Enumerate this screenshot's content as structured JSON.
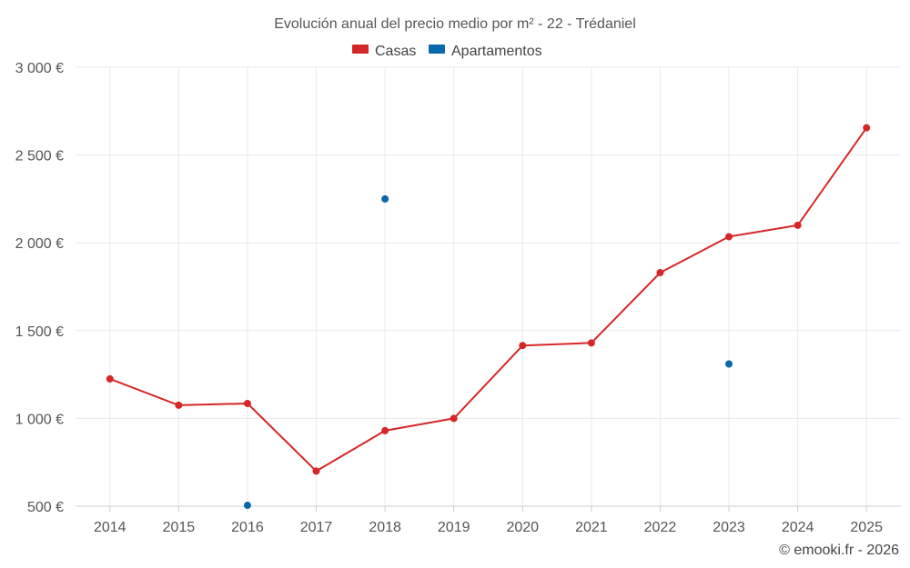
{
  "chart_data": {
    "type": "line",
    "title": "Evolución anual del precio medio por m² - 22 - Trédaniel",
    "xlabel": "",
    "ylabel": "",
    "ylim": [
      500,
      3000
    ],
    "y_ticks": [
      500,
      1000,
      1500,
      2000,
      2500,
      3000
    ],
    "y_tick_labels": [
      "500 €",
      "1 000 €",
      "1 500 €",
      "2 000 €",
      "2 500 €",
      "3 000 €"
    ],
    "categories": [
      "2014",
      "2015",
      "2016",
      "2017",
      "2018",
      "2019",
      "2020",
      "2021",
      "2022",
      "2023",
      "2024",
      "2025"
    ],
    "grid": true,
    "legend_position": "top-center",
    "series": [
      {
        "name": "Casas",
        "color": "#d62728",
        "style": "line",
        "values": [
          1225,
          1075,
          1085,
          700,
          930,
          1000,
          1415,
          1430,
          1830,
          2035,
          2100,
          2655
        ]
      },
      {
        "name": "Apartamentos",
        "color": "#0868ac",
        "style": "points",
        "values": [
          null,
          null,
          505,
          null,
          2250,
          null,
          null,
          null,
          null,
          1310,
          null,
          null
        ]
      }
    ]
  },
  "credit": "© emooki.fr - 2026"
}
